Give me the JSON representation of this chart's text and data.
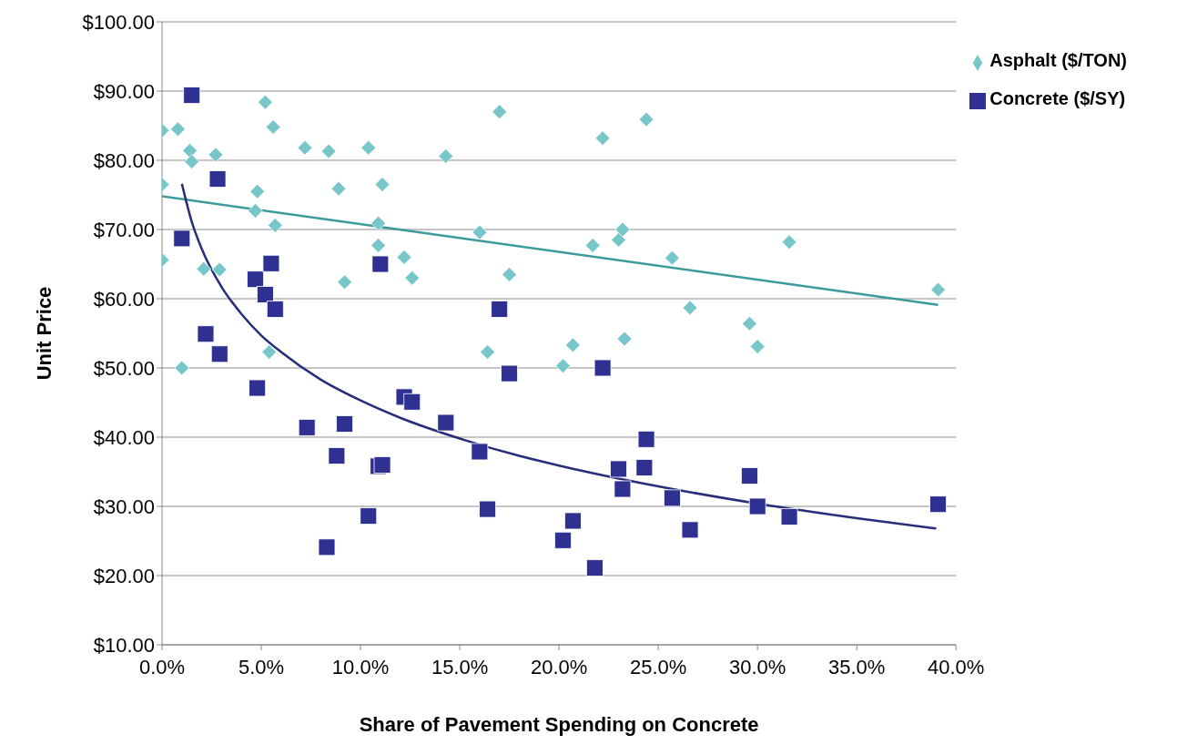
{
  "chart_data": {
    "type": "scatter",
    "xlabel": "Share of Pavement Spending on Concrete",
    "ylabel": "Unit Price",
    "xlim": [
      0,
      40
    ],
    "xticks": [
      {
        "value": 0,
        "label": "0.0%"
      },
      {
        "value": 5,
        "label": "5.0%"
      },
      {
        "value": 10,
        "label": "10.0%"
      },
      {
        "value": 15,
        "label": "15.0%"
      },
      {
        "value": 20,
        "label": "20.0%"
      },
      {
        "value": 25,
        "label": "25.0%"
      },
      {
        "value": 30,
        "label": "30.0%"
      },
      {
        "value": 35,
        "label": "35.0%"
      },
      {
        "value": 40,
        "label": "40.0%"
      }
    ],
    "ylim": [
      10,
      100
    ],
    "yticks": [
      {
        "value": 10,
        "label": "$10.00"
      },
      {
        "value": 20,
        "label": "$20.00"
      },
      {
        "value": 30,
        "label": "$30.00"
      },
      {
        "value": 40,
        "label": "$40.00"
      },
      {
        "value": 50,
        "label": "$50.00"
      },
      {
        "value": 60,
        "label": "$60.00"
      },
      {
        "value": 70,
        "label": "$70.00"
      },
      {
        "value": 80,
        "label": "$80.00"
      },
      {
        "value": 90,
        "label": "$90.00"
      },
      {
        "value": 100,
        "label": "$100.00"
      }
    ],
    "grid": "y",
    "legend": "top right",
    "series": [
      {
        "name": "Asphalt ($/TON)",
        "color": "#77c6c9",
        "marker": "diamond",
        "x": [
          0,
          0,
          0,
          0.8,
          1,
          1.4,
          1.5,
          2.1,
          2.7,
          2.9,
          4.8,
          4.7,
          5.2,
          5.6,
          5.7,
          5.4,
          7.2,
          8.4,
          8.9,
          9.2,
          10.4,
          10.9,
          10.9,
          11.1,
          12.2,
          12.6,
          14.3,
          16,
          16.4,
          17,
          17.5,
          20.2,
          20.7,
          21.7,
          22.2,
          23,
          23.2,
          23.3,
          24.4,
          25.7,
          26.6,
          29.6,
          30,
          31.6,
          39.1
        ],
        "values": [
          84.3,
          76.5,
          65.6,
          84.5,
          50,
          81.4,
          79.8,
          64.3,
          80.8,
          64.2,
          75.5,
          72.7,
          88.4,
          84.8,
          70.6,
          52.3,
          81.8,
          81.3,
          75.9,
          62.4,
          81.8,
          70.9,
          67.7,
          76.5,
          66,
          63,
          80.6,
          69.6,
          52.3,
          87,
          63.5,
          50.3,
          53.3,
          67.7,
          83.2,
          68.5,
          70,
          54.2,
          85.9,
          65.9,
          58.7,
          56.4,
          53.1,
          68.2,
          61.3
        ]
      },
      {
        "name": "Concrete ($/SY)",
        "color": "#2e3192",
        "marker": "square",
        "x": [
          1.5,
          1,
          2.8,
          2.2,
          2.9,
          4.7,
          4.8,
          5.2,
          5.5,
          5.7,
          7.3,
          8.3,
          8.8,
          9.2,
          10.4,
          10.9,
          11,
          11.1,
          12.2,
          12.6,
          14.3,
          16,
          16.4,
          17,
          17.5,
          20.2,
          20.7,
          21.8,
          22.2,
          23,
          23.2,
          24.3,
          24.4,
          25.7,
          26.6,
          29.6,
          30,
          31.6,
          39.1
        ],
        "values": [
          89.4,
          68.7,
          77.3,
          54.9,
          52,
          62.8,
          47.1,
          60.6,
          65.1,
          58.5,
          41.4,
          24.1,
          37.3,
          41.9,
          28.6,
          35.8,
          65,
          36,
          45.8,
          45.1,
          42.1,
          37.9,
          29.6,
          58.5,
          49.2,
          25.1,
          27.9,
          21.1,
          50,
          35.4,
          32.5,
          35.6,
          39.7,
          31.2,
          26.6,
          34.4,
          30,
          28.5,
          30.3
        ]
      },
      {
        "type": "line",
        "color": "#3a9a9c",
        "x": [
          0,
          39.1
        ],
        "values": [
          74.8,
          59.1
        ]
      },
      {
        "type": "line",
        "color": "#262d7a",
        "x": [
          1,
          1.5,
          2,
          3,
          4,
          5,
          6,
          8,
          10,
          12,
          15,
          18,
          20,
          25,
          30,
          35,
          39
        ],
        "values": [
          76.6,
          71.1,
          67.2,
          61.7,
          57.8,
          54.7,
          52.3,
          48.3,
          45.3,
          42.8,
          39.8,
          37.3,
          35.9,
          32.9,
          30.4,
          28.3,
          26.8
        ]
      }
    ]
  }
}
